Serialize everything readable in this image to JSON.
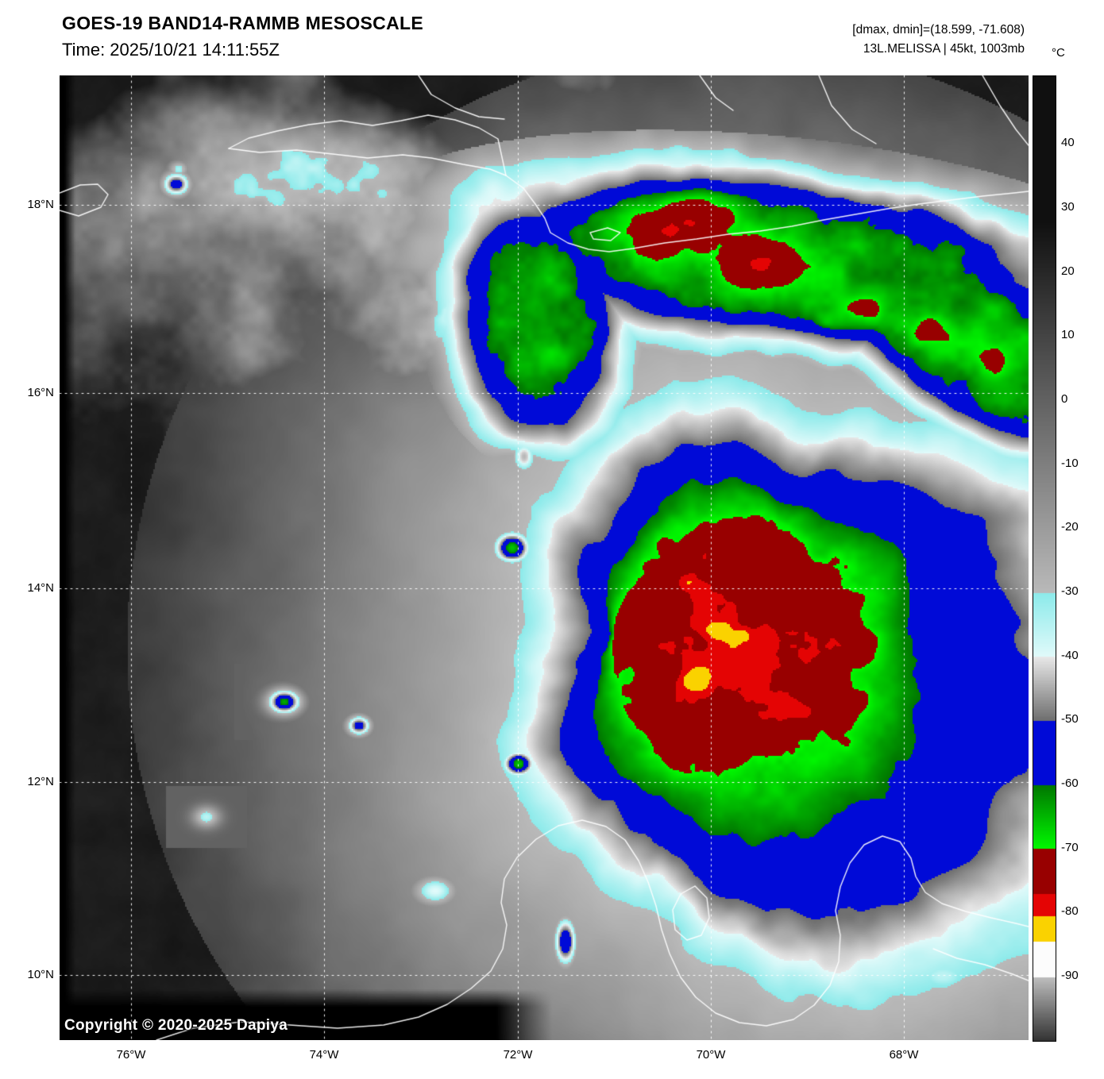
{
  "header": {
    "title": "GOES-19 BAND14-RAMMB MESOSCALE",
    "time": "Time: 2025/10/21 14:11:55Z",
    "dmax_dmin": "[dmax, dmin]=(18.599, -71.608)",
    "storm": "13L.MELISSA | 45kt, 1003mb"
  },
  "colorbar": {
    "unit": "°C",
    "ticks": [
      "40",
      "30",
      "20",
      "10",
      "0",
      "-10",
      "-20",
      "-30",
      "-40",
      "-50",
      "-60",
      "-70",
      "-80",
      "-90"
    ],
    "palette": {
      "warm_gray": "#181818",
      "cold_gray": "#e0e0e0",
      "cyan": "#8ceaea",
      "blue": "#000ad7",
      "green": "#00c800",
      "dark_red": "#980000",
      "red": "#e40404",
      "yellow": "#fad200",
      "coldest_white": "#fcfcfc"
    }
  },
  "axes": {
    "lat_labels": [
      "18°N",
      "16°N",
      "14°N",
      "12°N",
      "10°N"
    ],
    "lon_labels": [
      "76°W",
      "74°W",
      "72°W",
      "70°W",
      "68°W"
    ]
  },
  "map": {
    "copyright": "Copyright © 2020-2025 Dapiya"
  }
}
